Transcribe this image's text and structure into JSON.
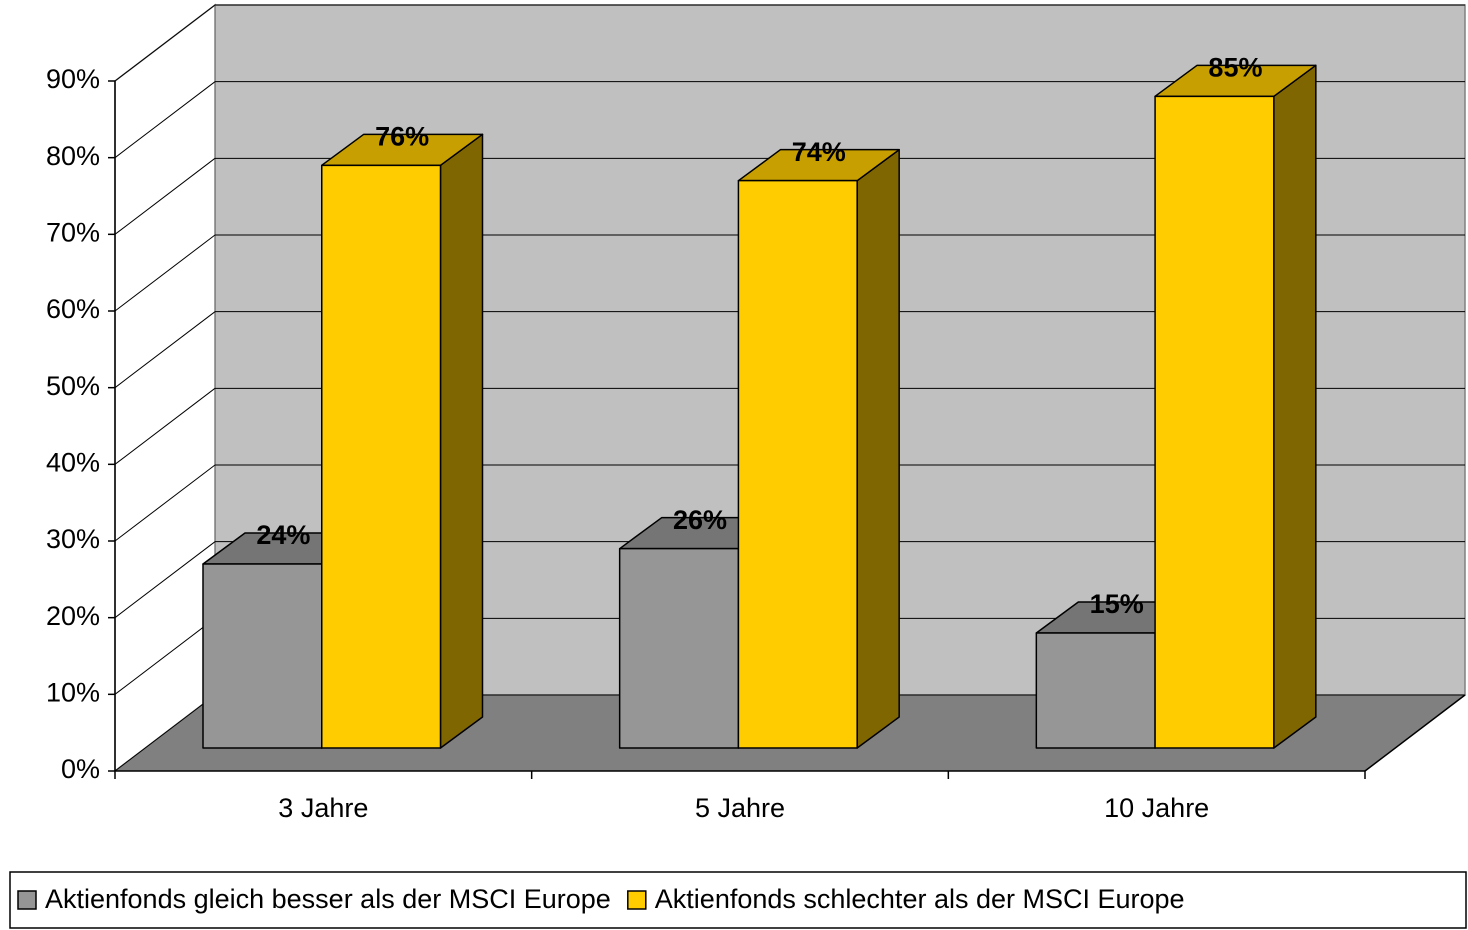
{
  "chart_data": {
    "type": "bar3d",
    "categories": [
      "3 Jahre",
      "5 Jahre",
      "10 Jahre"
    ],
    "series": [
      {
        "name": "Aktienfonds gleich besser als der MSCI Europe",
        "color": "#969696",
        "values": [
          24,
          26,
          15
        ],
        "value_labels": [
          "24%",
          "26%",
          "15%"
        ]
      },
      {
        "name": "Aktienfonds schlechter als der MSCI Europe",
        "color": "#ffcc00",
        "values": [
          76,
          74,
          85
        ],
        "value_labels": [
          "76%",
          "74%",
          "85%"
        ]
      }
    ],
    "ylim": [
      0,
      90
    ],
    "yticks": [
      {
        "value": 0,
        "label": "0%"
      },
      {
        "value": 10,
        "label": "10%"
      },
      {
        "value": 20,
        "label": "20%"
      },
      {
        "value": 30,
        "label": "30%"
      },
      {
        "value": 40,
        "label": "40%"
      },
      {
        "value": 50,
        "label": "50%"
      },
      {
        "value": 60,
        "label": "60%"
      },
      {
        "value": 70,
        "label": "70%"
      },
      {
        "value": 80,
        "label": "80%"
      },
      {
        "value": 90,
        "label": "90%"
      }
    ],
    "grid": true,
    "legend": "bottom"
  }
}
